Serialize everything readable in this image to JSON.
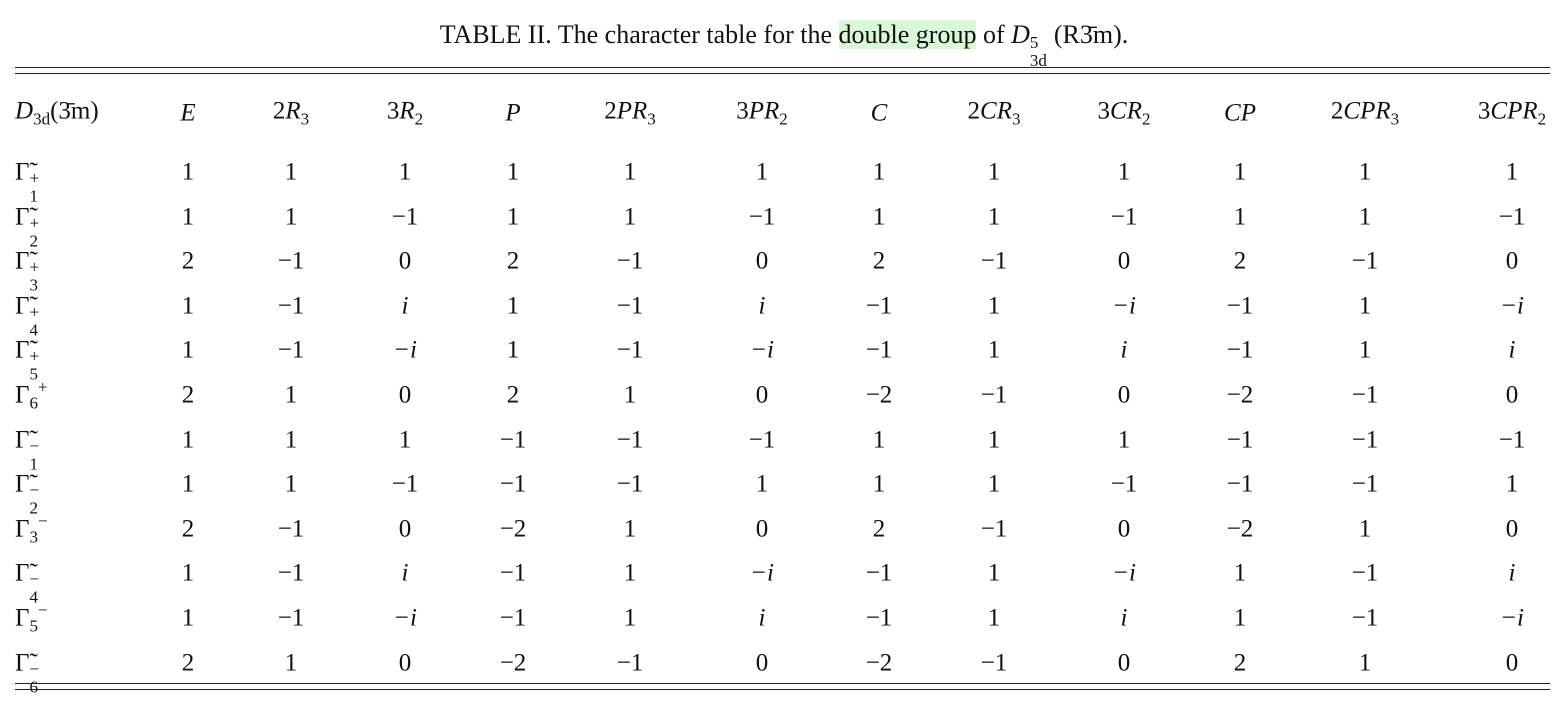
{
  "caption": {
    "prefix": "TABLE II. The character table for the ",
    "highlight": "double group",
    "middle": " of ",
    "symbol": {
      "main": "D",
      "sup": "5",
      "sub": "3d",
      "after": "(R3̄m)"
    },
    "end": "."
  },
  "table": {
    "header": [
      {
        "main": "D",
        "sub": "3d",
        "after": "(3̄m)"
      },
      {
        "main": "E"
      },
      {
        "coef": "2",
        "main": "R",
        "sub": "3"
      },
      {
        "coef": "3",
        "main": "R",
        "sub": "2"
      },
      {
        "main": "P"
      },
      {
        "coef": "2",
        "main": "PR",
        "sub": "3"
      },
      {
        "coef": "3",
        "main": "PR",
        "sub": "2"
      },
      {
        "main": "C"
      },
      {
        "coef": "2",
        "main": "CR",
        "sub": "3"
      },
      {
        "coef": "3",
        "main": "CR",
        "sub": "2"
      },
      {
        "main": "CP"
      },
      {
        "coef": "2",
        "main": "CPR",
        "sub": "3"
      },
      {
        "coef": "3",
        "main": "CPR",
        "sub": "2"
      }
    ],
    "rows": [
      {
        "label": {
          "main": "Γ̃",
          "sub": "1",
          "sup": "+"
        },
        "values": [
          "1",
          "1",
          "1",
          "1",
          "1",
          "1",
          "1",
          "1",
          "1",
          "1",
          "1",
          "1"
        ]
      },
      {
        "label": {
          "main": "Γ̃",
          "sub": "2",
          "sup": "+"
        },
        "values": [
          "1",
          "1",
          "−1",
          "1",
          "1",
          "−1",
          "1",
          "1",
          "−1",
          "1",
          "1",
          "−1"
        ]
      },
      {
        "label": {
          "main": "Γ̃",
          "sub": "3",
          "sup": "+"
        },
        "values": [
          "2",
          "−1",
          "0",
          "2",
          "−1",
          "0",
          "2",
          "−1",
          "0",
          "2",
          "−1",
          "0"
        ]
      },
      {
        "label": {
          "main": "Γ̃",
          "sub": "4",
          "sup": "+"
        },
        "values": [
          "1",
          "−1",
          "i",
          "1",
          "−1",
          "i",
          "−1",
          "1",
          "−i",
          "−1",
          "1",
          "−i"
        ]
      },
      {
        "label": {
          "main": "Γ̃",
          "sub": "5",
          "sup": "+"
        },
        "values": [
          "1",
          "−1",
          "−i",
          "1",
          "−1",
          "−i",
          "−1",
          "1",
          "i",
          "−1",
          "1",
          "i"
        ]
      },
      {
        "label": {
          "main": "Γ",
          "sub": "6",
          "sup": "+"
        },
        "values": [
          "2",
          "1",
          "0",
          "2",
          "1",
          "0",
          "−2",
          "−1",
          "0",
          "−2",
          "−1",
          "0"
        ]
      },
      {
        "label": {
          "main": "Γ̃",
          "sub": "1",
          "sup": "−"
        },
        "values": [
          "1",
          "1",
          "1",
          "−1",
          "−1",
          "−1",
          "1",
          "1",
          "1",
          "−1",
          "−1",
          "−1"
        ]
      },
      {
        "label": {
          "main": "Γ̃",
          "sub": "2",
          "sup": "−"
        },
        "values": [
          "1",
          "1",
          "−1",
          "−1",
          "−1",
          "1",
          "1",
          "1",
          "−1",
          "−1",
          "−1",
          "1"
        ]
      },
      {
        "label": {
          "main": "Γ",
          "sub": "3",
          "sup": "−"
        },
        "values": [
          "2",
          "−1",
          "0",
          "−2",
          "1",
          "0",
          "2",
          "−1",
          "0",
          "−2",
          "1",
          "0"
        ]
      },
      {
        "label": {
          "main": "Γ̃",
          "sub": "4",
          "sup": "−"
        },
        "values": [
          "1",
          "−1",
          "i",
          "−1",
          "1",
          "−i",
          "−1",
          "1",
          "−i",
          "1",
          "−1",
          "i"
        ]
      },
      {
        "label": {
          "main": "Γ",
          "sub": "5",
          "sup": "−"
        },
        "values": [
          "1",
          "−1",
          "−i",
          "−1",
          "1",
          "i",
          "−1",
          "1",
          "i",
          "1",
          "−1",
          "−i"
        ]
      },
      {
        "label": {
          "main": "Γ̃",
          "sub": "6",
          "sup": "−"
        },
        "values": [
          "2",
          "1",
          "0",
          "−2",
          "−1",
          "0",
          "−2",
          "−1",
          "0",
          "2",
          "1",
          "0"
        ]
      }
    ]
  }
}
